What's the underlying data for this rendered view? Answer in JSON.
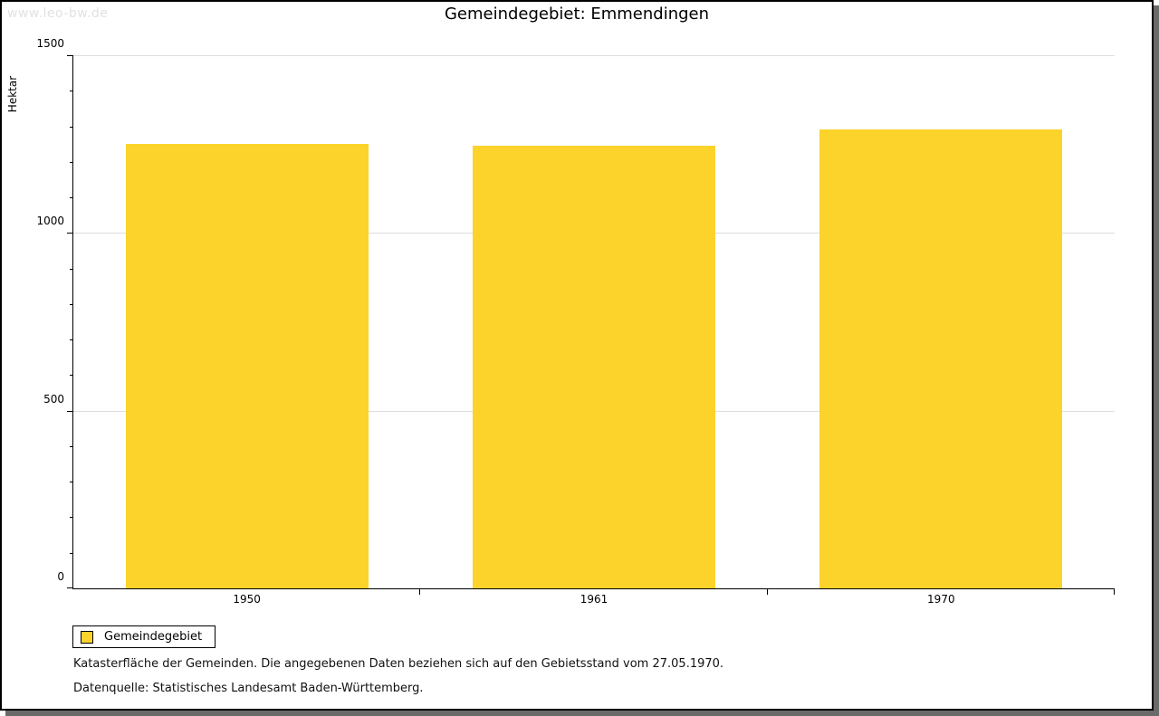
{
  "watermark": "www.leo-bw.de",
  "title": "Gemeindegebiet: Emmendingen",
  "chart_data": {
    "type": "bar",
    "title": "Gemeindegebiet: Emmendingen",
    "categories": [
      "1950",
      "1961",
      "1970"
    ],
    "values": [
      1251,
      1246,
      1292
    ],
    "series_name": "Gemeindegebiet",
    "xlabel": "",
    "ylabel": "Hektar",
    "ylim": [
      0,
      1500
    ],
    "yticks": [
      0,
      500,
      1000,
      1500
    ],
    "minor_tick_step": 100,
    "grid": true,
    "bar_color": "#FCD32B",
    "bar_width_fraction": 0.7,
    "legend_position": "bottom-left"
  },
  "legend": {
    "items": [
      {
        "label": "Gemeindegebiet",
        "color": "#FCD32B"
      }
    ]
  },
  "footer": {
    "line1": "Katasterfläche der Gemeinden. Die angegebenen Daten beziehen sich auf den Gebietsstand vom 27.05.1970.",
    "line2": "Datenquelle: Statistisches Landesamt Baden-Württemberg."
  },
  "colors": {
    "bar": "#FCD32B",
    "grid": "#DDDDDD",
    "axis": "#000000",
    "watermark": "#E2E2E2",
    "frame_shadow": "#6A6A6A"
  }
}
